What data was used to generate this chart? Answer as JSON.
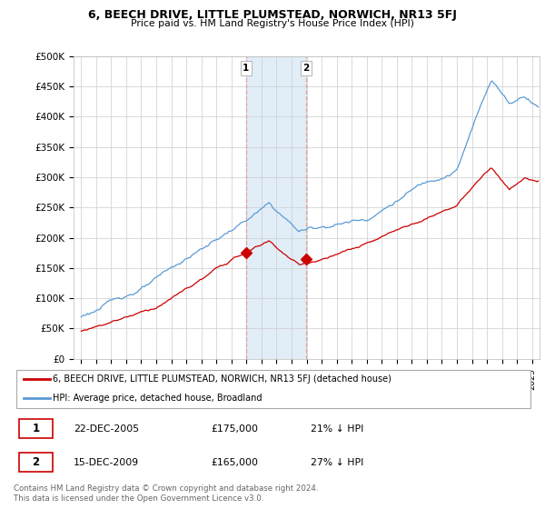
{
  "title": "6, BEECH DRIVE, LITTLE PLUMSTEAD, NORWICH, NR13 5FJ",
  "subtitle": "Price paid vs. HM Land Registry's House Price Index (HPI)",
  "legend_label1": "6, BEECH DRIVE, LITTLE PLUMSTEAD, NORWICH, NR13 5FJ (detached house)",
  "legend_label2": "HPI: Average price, detached house, Broadland",
  "sale1_label": "1",
  "sale1_date": "22-DEC-2005",
  "sale1_price": "£175,000",
  "sale1_note": "21% ↓ HPI",
  "sale2_label": "2",
  "sale2_date": "15-DEC-2009",
  "sale2_price": "£165,000",
  "sale2_note": "27% ↓ HPI",
  "footnote": "Contains HM Land Registry data © Crown copyright and database right 2024.\nThis data is licensed under the Open Government Licence v3.0.",
  "hpi_color": "#5b9bd5",
  "price_color": "#cc0000",
  "sale_marker_color": "#cc0000",
  "shaded_color": "#daeaf7",
  "shaded_alpha": 0.8,
  "ylim": [
    0,
    500000
  ],
  "yticks": [
    0,
    50000,
    100000,
    150000,
    200000,
    250000,
    300000,
    350000,
    400000,
    450000,
    500000
  ],
  "ytick_labels": [
    "£0",
    "£50K",
    "£100K",
    "£150K",
    "£200K",
    "£250K",
    "£300K",
    "£350K",
    "£400K",
    "£450K",
    "£500K"
  ],
  "sale1_x": 2005.97,
  "sale1_y": 175000,
  "sale2_x": 2009.96,
  "sale2_y": 165000,
  "shade_x_start": 2005.97,
  "shade_x_end": 2009.96,
  "xmin": 1994.5,
  "xmax": 2025.5
}
